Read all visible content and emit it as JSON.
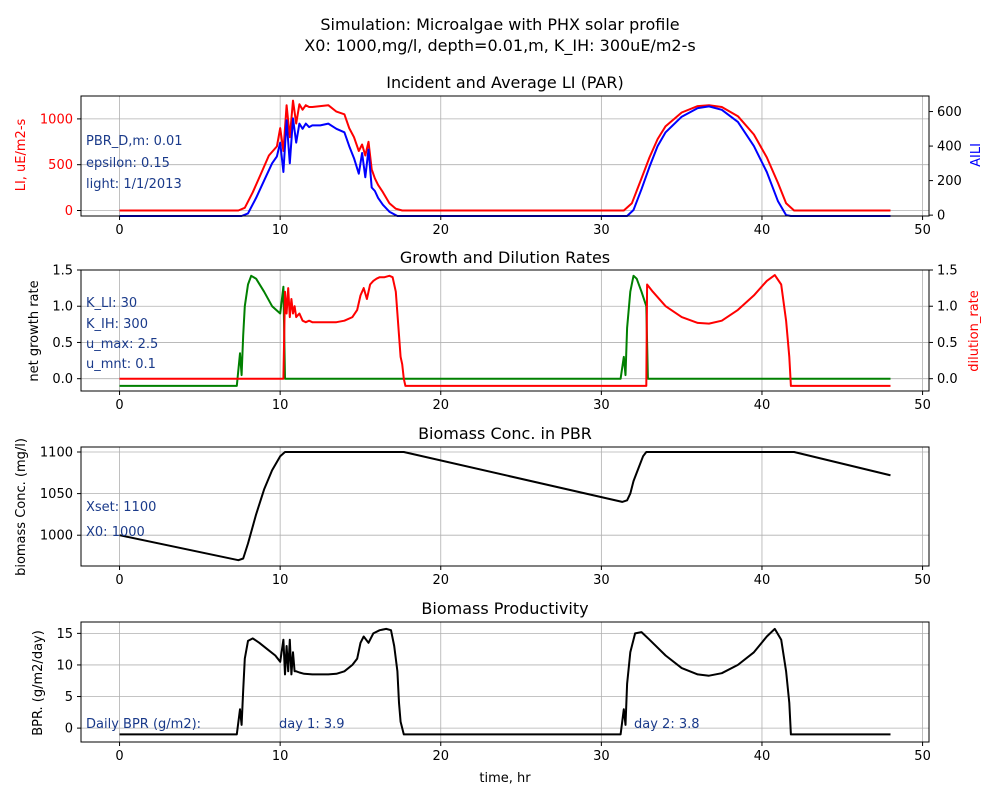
{
  "figure": {
    "suptitle_line1": "Simulation: Microalgae with PHX solar profile",
    "suptitle_line2": "X0: 1000,mg/l, depth=0.01,m, K_IH: 300uE/m2-s"
  },
  "colors": {
    "red": "#ff0000",
    "blue": "#0000ff",
    "green": "#008000",
    "black": "#000000",
    "annotation": "#1a3a8a",
    "grid": "#b0b0b0"
  },
  "chart_data": [
    {
      "type": "line",
      "title": "Incident and Average LI (PAR)",
      "xlabel": "",
      "ylabel": "LI, uE/m2-s",
      "ylabel_right": "AILI",
      "xlim": [
        -2.4,
        50.4
      ],
      "ylim": [
        -60,
        1250
      ],
      "ylim_right": [
        -5,
        690
      ],
      "xticks": [
        0,
        10,
        20,
        30,
        40,
        50
      ],
      "yticks": [
        0,
        500,
        1000
      ],
      "yticks_right": [
        0,
        200,
        400,
        600
      ],
      "grid": true,
      "annotations": [
        "PBR_D,m: 0.01",
        "epsilon: 0.15",
        "light: 1/1/2013"
      ],
      "series": [
        {
          "color": "red",
          "axis": "left",
          "x": [
            0,
            7.4,
            7.8,
            8.3,
            8.8,
            9.3,
            9.8,
            10.0,
            10.2,
            10.4,
            10.6,
            10.8,
            11.0,
            11.2,
            11.4,
            11.6,
            11.8,
            12.0,
            12.5,
            13.0,
            13.5,
            14.0,
            14.3,
            14.6,
            14.9,
            15.1,
            15.3,
            15.5,
            15.7,
            15.9,
            16.1,
            16.4,
            16.8,
            17.2,
            17.6,
            18.0,
            25,
            31.4,
            31.9,
            32.5,
            33,
            33.5,
            34,
            35,
            36,
            36.7,
            37.5,
            38.5,
            39.5,
            40.3,
            41,
            41.5,
            42,
            48
          ],
          "y": [
            0,
            0,
            30,
            200,
            400,
            600,
            700,
            900,
            650,
            1150,
            800,
            1200,
            950,
            1160,
            1100,
            1150,
            1130,
            1130,
            1140,
            1150,
            1080,
            1050,
            900,
            800,
            650,
            720,
            600,
            750,
            450,
            350,
            280,
            200,
            80,
            20,
            0,
            0,
            0,
            0,
            80,
            350,
            580,
            780,
            920,
            1070,
            1140,
            1150,
            1130,
            1030,
            830,
            580,
            300,
            80,
            0,
            0
          ]
        },
        {
          "color": "blue",
          "axis": "right",
          "x": [
            0,
            7.6,
            8.0,
            8.5,
            9.0,
            9.5,
            9.8,
            10.0,
            10.2,
            10.4,
            10.6,
            10.8,
            11.0,
            11.2,
            11.4,
            11.6,
            11.8,
            12.0,
            12.5,
            13.0,
            13.5,
            14.0,
            14.3,
            14.6,
            14.9,
            15.1,
            15.3,
            15.5,
            15.7,
            15.9,
            16.1,
            16.4,
            16.8,
            17.3,
            17.8,
            18.2,
            25,
            31.6,
            32.0,
            32.5,
            33,
            33.5,
            34,
            35,
            36,
            36.7,
            37.5,
            38.5,
            39.5,
            40.3,
            41,
            41.5,
            41.8,
            48
          ],
          "y": [
            -5,
            -5,
            10,
            100,
            200,
            300,
            340,
            420,
            250,
            550,
            300,
            560,
            420,
            530,
            500,
            530,
            510,
            520,
            520,
            530,
            500,
            480,
            400,
            330,
            240,
            360,
            220,
            380,
            160,
            140,
            100,
            60,
            20,
            -5,
            -5,
            -5,
            -5,
            -5,
            30,
            150,
            280,
            400,
            480,
            570,
            620,
            630,
            610,
            540,
            400,
            250,
            80,
            0,
            -5,
            -5
          ]
        }
      ]
    },
    {
      "type": "line",
      "title": "Growth and Dilution Rates",
      "xlabel": "",
      "ylabel": "net growth rate",
      "ylabel_right": "dilution_rate",
      "xlim": [
        -2.4,
        50.4
      ],
      "ylim": [
        -0.17,
        1.5
      ],
      "ylim_right": [
        -0.17,
        1.5
      ],
      "xticks": [
        0,
        10,
        20,
        30,
        40,
        50
      ],
      "yticks": [
        0.0,
        0.5,
        1.0,
        1.5
      ],
      "yticks_right": [
        0.0,
        0.5,
        1.0,
        1.5
      ],
      "grid": true,
      "annotations": [
        "K_LI: 30",
        "K_IH: 300",
        "u_max: 2.5",
        "u_mnt: 0.1"
      ],
      "series": [
        {
          "color": "green",
          "axis": "left",
          "x": [
            0,
            7.3,
            7.5,
            7.6,
            7.7,
            7.8,
            8.0,
            8.2,
            8.5,
            9.0,
            9.5,
            10.0,
            10.2,
            10.3,
            10.4,
            25,
            31.2,
            31.4,
            31.5,
            31.6,
            31.8,
            32.0,
            32.2,
            32.5,
            32.8,
            32.9,
            48
          ],
          "y": [
            -0.1,
            -0.1,
            0.35,
            0.05,
            0.6,
            1.0,
            1.3,
            1.42,
            1.38,
            1.2,
            1.0,
            0.9,
            1.27,
            0.0,
            0.0,
            0.0,
            0.0,
            0.3,
            0.05,
            0.7,
            1.2,
            1.42,
            1.38,
            1.2,
            1.0,
            0.0,
            0.0
          ]
        },
        {
          "color": "red",
          "axis": "right",
          "x": [
            0,
            10.2,
            10.3,
            10.4,
            10.5,
            10.6,
            10.7,
            10.8,
            10.9,
            11.0,
            11.2,
            11.4,
            11.6,
            11.8,
            12.0,
            12.5,
            13.0,
            13.5,
            14.0,
            14.5,
            14.8,
            15.0,
            15.2,
            15.4,
            15.6,
            15.8,
            16.0,
            16.2,
            16.5,
            16.8,
            17.0,
            17.2,
            17.4,
            17.5,
            17.6,
            17.7,
            17.8,
            32.8,
            32.85,
            33.2,
            34,
            35,
            36,
            36.7,
            37.5,
            38.5,
            39.5,
            40.3,
            40.8,
            41.2,
            41.5,
            41.7,
            41.8,
            48
          ],
          "y": [
            0,
            0,
            1.2,
            0.9,
            1.25,
            0.85,
            1.1,
            0.9,
            1.0,
            0.85,
            0.9,
            0.8,
            0.78,
            0.8,
            0.78,
            0.78,
            0.78,
            0.78,
            0.8,
            0.85,
            0.95,
            1.15,
            1.25,
            1.1,
            1.3,
            1.35,
            1.38,
            1.4,
            1.4,
            1.42,
            1.4,
            1.2,
            0.6,
            0.3,
            0.2,
            0.0,
            -0.1,
            -0.1,
            1.3,
            1.2,
            1.0,
            0.85,
            0.77,
            0.76,
            0.8,
            0.95,
            1.15,
            1.35,
            1.43,
            1.3,
            0.8,
            0.3,
            -0.1,
            -0.1
          ]
        }
      ]
    },
    {
      "type": "line",
      "title": "Biomass Conc. in PBR",
      "xlabel": "",
      "ylabel": "biomass Conc. (mg/l)",
      "xlim": [
        -2.4,
        50.4
      ],
      "ylim": [
        963,
        1106
      ],
      "xticks": [
        0,
        10,
        20,
        30,
        40,
        50
      ],
      "yticks": [
        1000,
        1050,
        1100
      ],
      "grid": true,
      "annotations": [
        "Xset: 1100",
        "X0: 1000"
      ],
      "series": [
        {
          "color": "black",
          "axis": "left",
          "x": [
            0,
            7.4,
            7.7,
            8.0,
            8.5,
            9.0,
            9.5,
            10.0,
            10.3,
            17.7,
            31.3,
            31.6,
            31.8,
            32.0,
            32.3,
            32.6,
            32.8,
            42.0,
            48
          ],
          "y": [
            1000,
            970,
            972,
            990,
            1025,
            1055,
            1078,
            1095,
            1100,
            1100,
            1040,
            1042,
            1050,
            1065,
            1080,
            1095,
            1100,
            1100,
            1072
          ]
        }
      ]
    },
    {
      "type": "line",
      "title": "Biomass Productivity",
      "xlabel": "time, hr",
      "ylabel": "BPR. (g/m2/day)",
      "xlim": [
        -2.4,
        50.4
      ],
      "ylim": [
        -2.2,
        16.8
      ],
      "xticks": [
        0,
        10,
        20,
        30,
        40,
        50
      ],
      "yticks": [
        0,
        5,
        10,
        15
      ],
      "grid": true,
      "annotations": [
        "Daily BPR (g/m2):",
        "day 1: 3.9",
        "day 2: 3.8"
      ],
      "series": [
        {
          "color": "black",
          "axis": "left",
          "x": [
            0,
            7.3,
            7.5,
            7.6,
            7.7,
            7.8,
            8.0,
            8.3,
            8.7,
            9.2,
            9.7,
            10.0,
            10.2,
            10.3,
            10.4,
            10.5,
            10.6,
            10.7,
            10.8,
            10.9,
            11.0,
            11.2,
            11.5,
            12.0,
            12.5,
            13.0,
            13.5,
            14.0,
            14.5,
            14.8,
            15.0,
            15.2,
            15.5,
            15.8,
            16.2,
            16.6,
            16.9,
            17.1,
            17.3,
            17.4,
            17.5,
            17.7,
            18,
            31.2,
            31.4,
            31.5,
            31.6,
            31.8,
            32.1,
            32.5,
            33,
            34,
            35,
            36,
            36.7,
            37.5,
            38.5,
            39.5,
            40.3,
            40.8,
            41.2,
            41.5,
            41.7,
            41.8,
            48
          ],
          "y": [
            -1,
            -1,
            3,
            0.5,
            6,
            11,
            13.8,
            14.2,
            13.5,
            12.5,
            11.5,
            10.5,
            14,
            8.5,
            13,
            9,
            14,
            8.5,
            12,
            9,
            9,
            8.8,
            8.6,
            8.5,
            8.5,
            8.5,
            8.6,
            9,
            10,
            11,
            13.5,
            14.5,
            13.5,
            15,
            15.5,
            15.7,
            15.5,
            13,
            9,
            4,
            1,
            -1,
            -1,
            -1,
            3,
            0.5,
            7,
            12,
            15,
            15.2,
            14,
            11.5,
            9.5,
            8.5,
            8.3,
            8.7,
            10,
            12,
            14.5,
            15.7,
            14,
            9,
            4,
            -1,
            -1
          ]
        }
      ]
    }
  ]
}
